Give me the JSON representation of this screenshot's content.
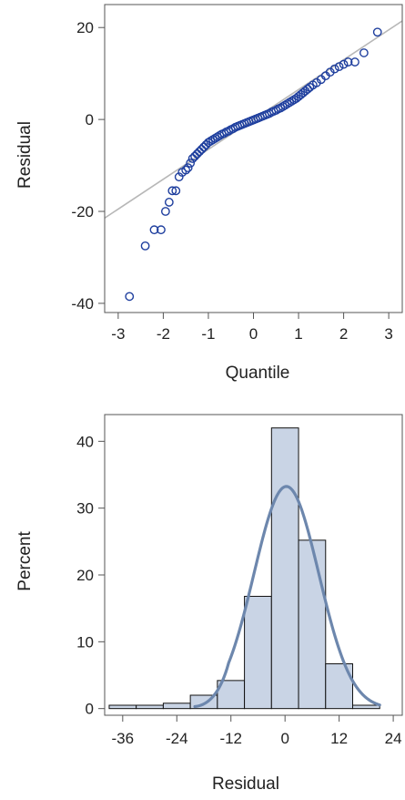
{
  "colors": {
    "marker": "#1f3f9e",
    "reference_line": "#b7b7b7",
    "bar_fill": "#c9d4e5",
    "bar_stroke": "#111111",
    "density_line": "#6d87ad",
    "frame": "#555555"
  },
  "chart_data": [
    {
      "type": "scatter",
      "title": "",
      "xlabel": "Quantile",
      "ylabel": "Residual",
      "xlim": [
        -3.3,
        3.3
      ],
      "ylim": [
        -42,
        25
      ],
      "xticks": [
        -3,
        -2,
        -1,
        0,
        1,
        2,
        3
      ],
      "yticks": [
        -40,
        -20,
        0,
        20
      ],
      "grid": false,
      "reference_line": {
        "slope": 6.5,
        "intercept": 0
      },
      "points": [
        [
          -2.75,
          -38.5
        ],
        [
          -2.4,
          -27.5
        ],
        [
          -2.2,
          -24
        ],
        [
          -2.05,
          -24
        ],
        [
          -1.95,
          -20
        ],
        [
          -1.87,
          -18
        ],
        [
          -1.8,
          -15.5
        ],
        [
          -1.72,
          -15.5
        ],
        [
          -1.65,
          -12.5
        ],
        [
          -1.58,
          -11.5
        ],
        [
          -1.5,
          -11
        ],
        [
          -1.45,
          -10.5
        ],
        [
          -1.4,
          -9.5
        ],
        [
          -1.35,
          -8.5
        ],
        [
          -1.3,
          -8
        ],
        [
          -1.25,
          -7.5
        ],
        [
          -1.2,
          -7
        ],
        [
          -1.15,
          -6.5
        ],
        [
          -1.1,
          -6
        ],
        [
          -1.05,
          -5.5
        ],
        [
          -1.0,
          -5
        ],
        [
          -0.95,
          -4.7
        ],
        [
          -0.9,
          -4.4
        ],
        [
          -0.85,
          -4.1
        ],
        [
          -0.8,
          -3.8
        ],
        [
          -0.75,
          -3.5
        ],
        [
          -0.7,
          -3.2
        ],
        [
          -0.65,
          -3
        ],
        [
          -0.6,
          -2.7
        ],
        [
          -0.55,
          -2.5
        ],
        [
          -0.5,
          -2.2
        ],
        [
          -0.45,
          -2
        ],
        [
          -0.4,
          -1.7
        ],
        [
          -0.35,
          -1.5
        ],
        [
          -0.3,
          -1.3
        ],
        [
          -0.25,
          -1.1
        ],
        [
          -0.2,
          -0.9
        ],
        [
          -0.15,
          -0.7
        ],
        [
          -0.1,
          -0.5
        ],
        [
          -0.05,
          -0.3
        ],
        [
          0.0,
          -0.1
        ],
        [
          0.05,
          0.1
        ],
        [
          0.1,
          0.3
        ],
        [
          0.15,
          0.5
        ],
        [
          0.2,
          0.7
        ],
        [
          0.25,
          0.9
        ],
        [
          0.3,
          1.1
        ],
        [
          0.35,
          1.3
        ],
        [
          0.4,
          1.6
        ],
        [
          0.45,
          1.8
        ],
        [
          0.5,
          2
        ],
        [
          0.55,
          2.3
        ],
        [
          0.6,
          2.5
        ],
        [
          0.65,
          2.8
        ],
        [
          0.7,
          3.1
        ],
        [
          0.75,
          3.4
        ],
        [
          0.8,
          3.7
        ],
        [
          0.85,
          4
        ],
        [
          0.9,
          4.3
        ],
        [
          0.95,
          4.6
        ],
        [
          1.0,
          5
        ],
        [
          1.05,
          5.4
        ],
        [
          1.1,
          5.8
        ],
        [
          1.15,
          6.2
        ],
        [
          1.2,
          6.6
        ],
        [
          1.25,
          7
        ],
        [
          1.32,
          7.5
        ],
        [
          1.4,
          8
        ],
        [
          1.5,
          8.7
        ],
        [
          1.6,
          9.5
        ],
        [
          1.7,
          10.3
        ],
        [
          1.8,
          11
        ],
        [
          1.9,
          11.5
        ],
        [
          2.0,
          12
        ],
        [
          2.1,
          12.5
        ],
        [
          2.25,
          12.5
        ],
        [
          2.45,
          14.5
        ],
        [
          2.75,
          19
        ]
      ]
    },
    {
      "type": "bar",
      "title": "",
      "xlabel": "Residual",
      "ylabel": "Percent",
      "xlim": [
        -40,
        26
      ],
      "ylim": [
        -1,
        44
      ],
      "xticks": [
        -36,
        -24,
        -12,
        0,
        12,
        24
      ],
      "yticks": [
        0,
        10,
        20,
        30,
        40
      ],
      "grid": false,
      "bin_width": 6,
      "bins": [
        {
          "start": -39,
          "value": 0.5
        },
        {
          "start": -33,
          "value": 0.5
        },
        {
          "start": -27,
          "value": 0.8
        },
        {
          "start": -21,
          "value": 2.0
        },
        {
          "start": -15,
          "value": 4.2
        },
        {
          "start": -9,
          "value": 16.8
        },
        {
          "start": -3,
          "value": 42.0
        },
        {
          "start": 3,
          "value": 25.2
        },
        {
          "start": 9,
          "value": 6.7
        },
        {
          "start": 15,
          "value": 0.5
        }
      ],
      "density": {
        "type": "normal",
        "mean": 0.3,
        "sd": 7.2,
        "bin_width": 6
      }
    }
  ]
}
